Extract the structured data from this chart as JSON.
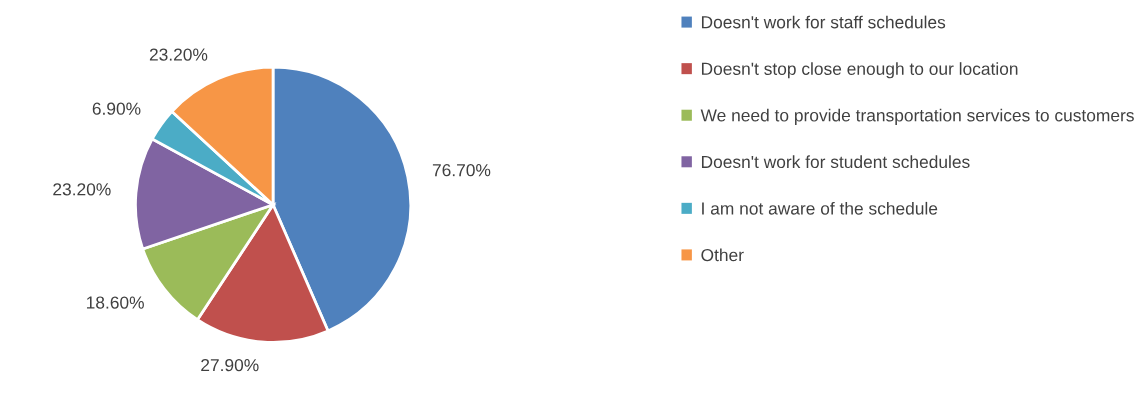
{
  "chart_data": {
    "type": "pie",
    "categories": [
      "Doesn't work for staff schedules",
      "Doesn't stop close enough to our location",
      "We need to provide transportation services to customers",
      "Doesn't work for student schedules",
      "I am not aware of the schedule",
      "Other"
    ],
    "values": [
      76.7,
      27.9,
      18.6,
      23.2,
      6.9,
      23.2
    ],
    "value_labels": [
      "76.70%",
      "27.90%",
      "18.60%",
      "23.20%",
      "6.90%",
      "23.20%"
    ],
    "colors": [
      "#4f81bd",
      "#c0504d",
      "#9bbb59",
      "#8064a2",
      "#4bacc6",
      "#f79646"
    ],
    "legend": "right"
  }
}
